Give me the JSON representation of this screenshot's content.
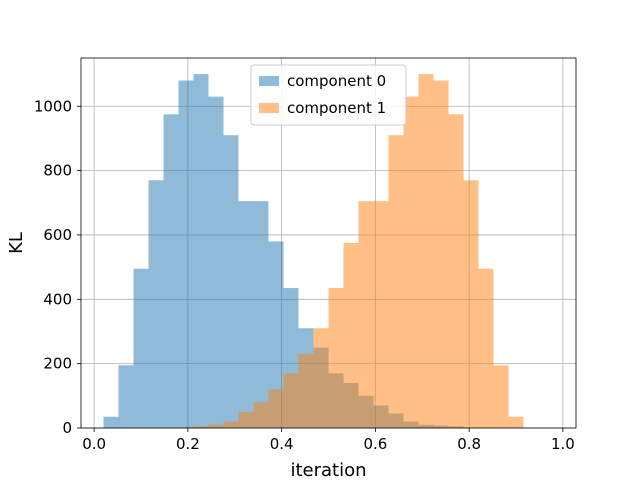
{
  "chart_data": {
    "type": "bar",
    "title": "",
    "xlabel": "iteration",
    "ylabel": "KL",
    "xlim": [
      -0.028,
      1.028
    ],
    "ylim": [
      0,
      1150
    ],
    "xticks": [
      0.0,
      0.2,
      0.4,
      0.6,
      0.8,
      1.0
    ],
    "xtick_labels": [
      "0.0",
      "0.2",
      "0.4",
      "0.6",
      "0.8",
      "1.0"
    ],
    "yticks": [
      0,
      200,
      400,
      600,
      800,
      1000
    ],
    "ytick_labels": [
      "0",
      "200",
      "400",
      "600",
      "800",
      "1000"
    ],
    "grid": true,
    "legend_position": "top-center",
    "bin_width": 0.032,
    "series": [
      {
        "name": "component 0",
        "color": "#1f77b4",
        "alpha": 0.5,
        "bin_start": 0.02,
        "values": [
          35,
          195,
          495,
          770,
          975,
          1080,
          1100,
          1030,
          910,
          705,
          705,
          580,
          435,
          310,
          250,
          170,
          140,
          100,
          70,
          45,
          20,
          10,
          8,
          5
        ]
      },
      {
        "name": "component 1",
        "color": "#ff7f0e",
        "alpha": 0.5,
        "bin_start": 0.212,
        "values": [
          5,
          10,
          20,
          50,
          80,
          120,
          170,
          230,
          310,
          435,
          575,
          705,
          705,
          910,
          1030,
          1100,
          1080,
          975,
          770,
          495,
          195,
          35
        ]
      }
    ]
  }
}
